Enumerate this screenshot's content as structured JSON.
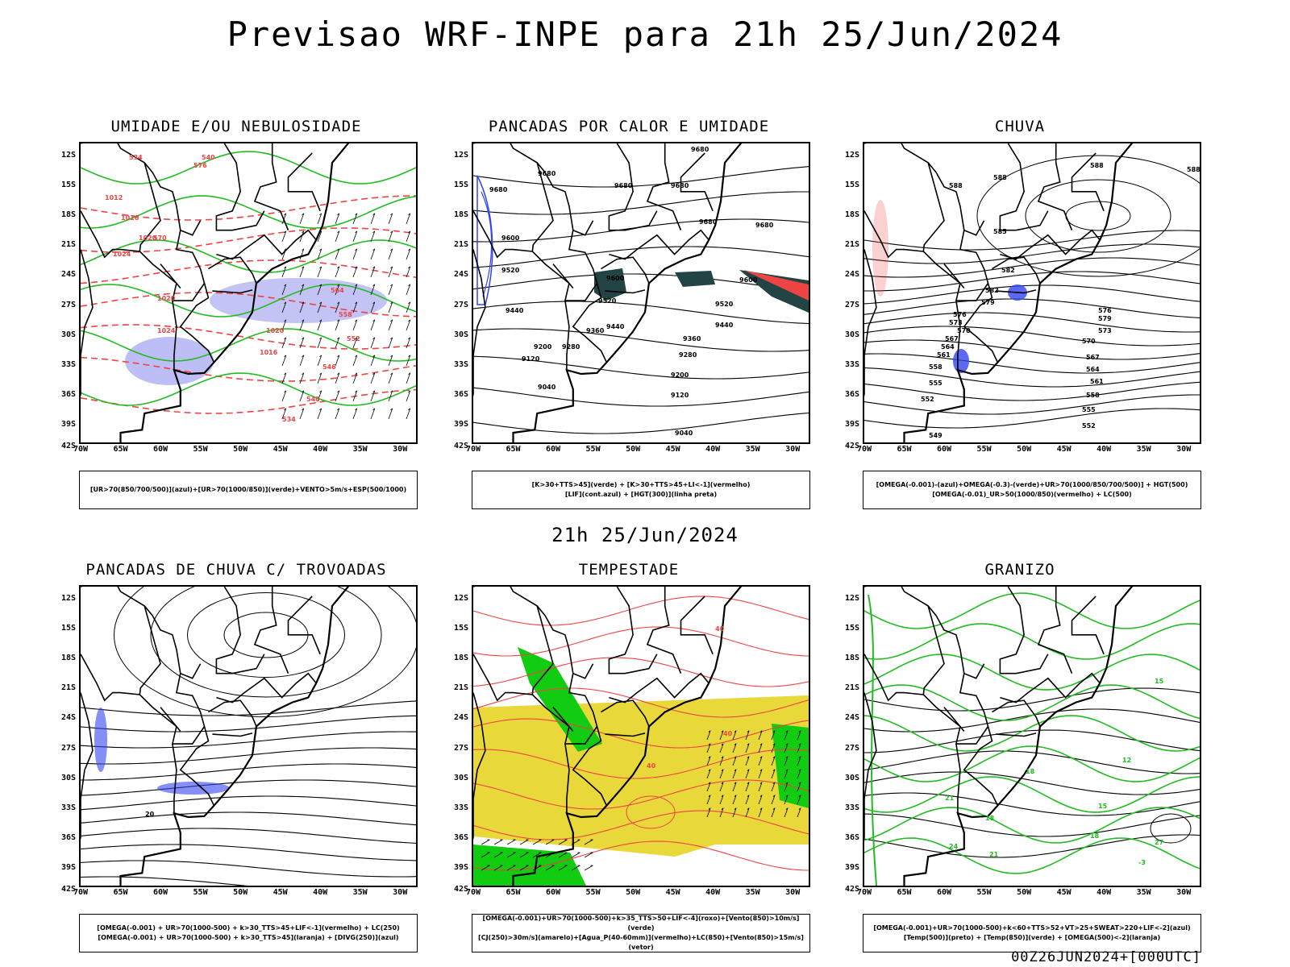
{
  "title": "Previsao WRF-INPE  para 21h 25/Jun/2024",
  "mid_title": "21h 25/Jun/2024",
  "footer": "00Z26JUN2024+[000UTC]",
  "lat_labels": [
    "12S",
    "15S",
    "18S",
    "21S",
    "24S",
    "27S",
    "30S",
    "33S",
    "36S",
    "39S",
    "42S"
  ],
  "lon_labels": [
    "70W",
    "65W",
    "60W",
    "55W",
    "50W",
    "45W",
    "40W",
    "35W",
    "30W"
  ],
  "colors": {
    "frame": "#000000",
    "green_contour": "#22bb22",
    "red_contour": "#ee4444",
    "blue_contour": "#3344ee",
    "purple_shade": "#8888ee",
    "yellow_shade": "#e8d83a",
    "dark_teal": "#224444",
    "green_vector": "#11cc11"
  },
  "panels": [
    {
      "title": "UMIDADE E/OU NEBULOSIDADE",
      "legend": [
        "[UR>70(850/700/500)](azul)+[UR>70(1000/850)](verde)+VENTO>5m/s+ESP(500/1000)"
      ],
      "labels": [
        "1012",
        "1016",
        "1020",
        "1024",
        "1020",
        "1024",
        "1020",
        "1016",
        "576",
        "570",
        "564",
        "558",
        "552",
        "546",
        "540",
        "534",
        "534",
        "540"
      ]
    },
    {
      "title": "PANCADAS POR CALOR E UMIDADE",
      "legend": [
        "[K>30+TTS>45](verde) + [K>30+TTS>45+LI<-1](vermelho)",
        "[LIF](cont.azul) + [HGT(300)](linha preta)"
      ],
      "labels": [
        "9680",
        "9680",
        "9680",
        "9680",
        "9680",
        "9680",
        "9680",
        "9600",
        "9600",
        "9600",
        "9520",
        "9520",
        "9520",
        "9440",
        "9440",
        "9440",
        "9360",
        "9360",
        "9280",
        "9280",
        "9200",
        "9200",
        "9120",
        "9120",
        "9040",
        "9040"
      ]
    },
    {
      "title": "CHUVA",
      "legend": [
        "[OMEGA(-0.001)-(azul)+OMEGA(-0.3)-(verde)+UR>70(1000/850/700/500)] + HGT(500)",
        "[OMEGA(-0.01)_UR>50(1000/850)(vermelho) + LC(500)"
      ],
      "labels": [
        "588",
        "588",
        "588",
        "588",
        "585",
        "582",
        "582",
        "579",
        "576",
        "573",
        "570",
        "567",
        "564",
        "561",
        "558",
        "555",
        "552",
        "549",
        "579",
        "576",
        "573",
        "570",
        "567",
        "564",
        "561",
        "558",
        "555",
        "552"
      ]
    },
    {
      "title": "PANCADAS DE CHUVA C/ TROVOADAS",
      "legend": [
        "[OMEGA(-0.001) + UR>70(1000-500) + k>30_TTS>45+LIF<-1](vermelho) + LC(250)",
        "[OMEGA(-0.001) + UR>70(1000-500) + k>30_TTS>45](laranja) + [DIVG(250)](azul)"
      ],
      "labels": [
        "20"
      ]
    },
    {
      "title": "TEMPESTADE",
      "legend": [
        "[OMEGA(-0.001)+UR>70(1000-500)+k>35_TTS>50+LIF<-4](roxo)+[Vento(850)>10m/s](verde)",
        "[CJ(250)>30m/s](amarelo)+[Agua_P(40-60mm)](vermelho)+LC(850)+[Vento(850)>15m/s](vetor)"
      ],
      "labels": [
        "40",
        "40",
        "40"
      ]
    },
    {
      "title": "GRANIZO",
      "legend": [
        "[OMEGA(-0.001)+UR>70(1000-500)+k<60+TTS>52+VT>25+SWEAT>220+LIF<-2](azul)",
        "[Temp(500)](preto) + [Temp(850)](verde) + [OMEGA(500)<-2](laranja)"
      ],
      "labels": [
        "15",
        "12",
        "18",
        "15",
        "21",
        "18",
        "24",
        "21",
        "27",
        "-3",
        "18"
      ]
    }
  ]
}
